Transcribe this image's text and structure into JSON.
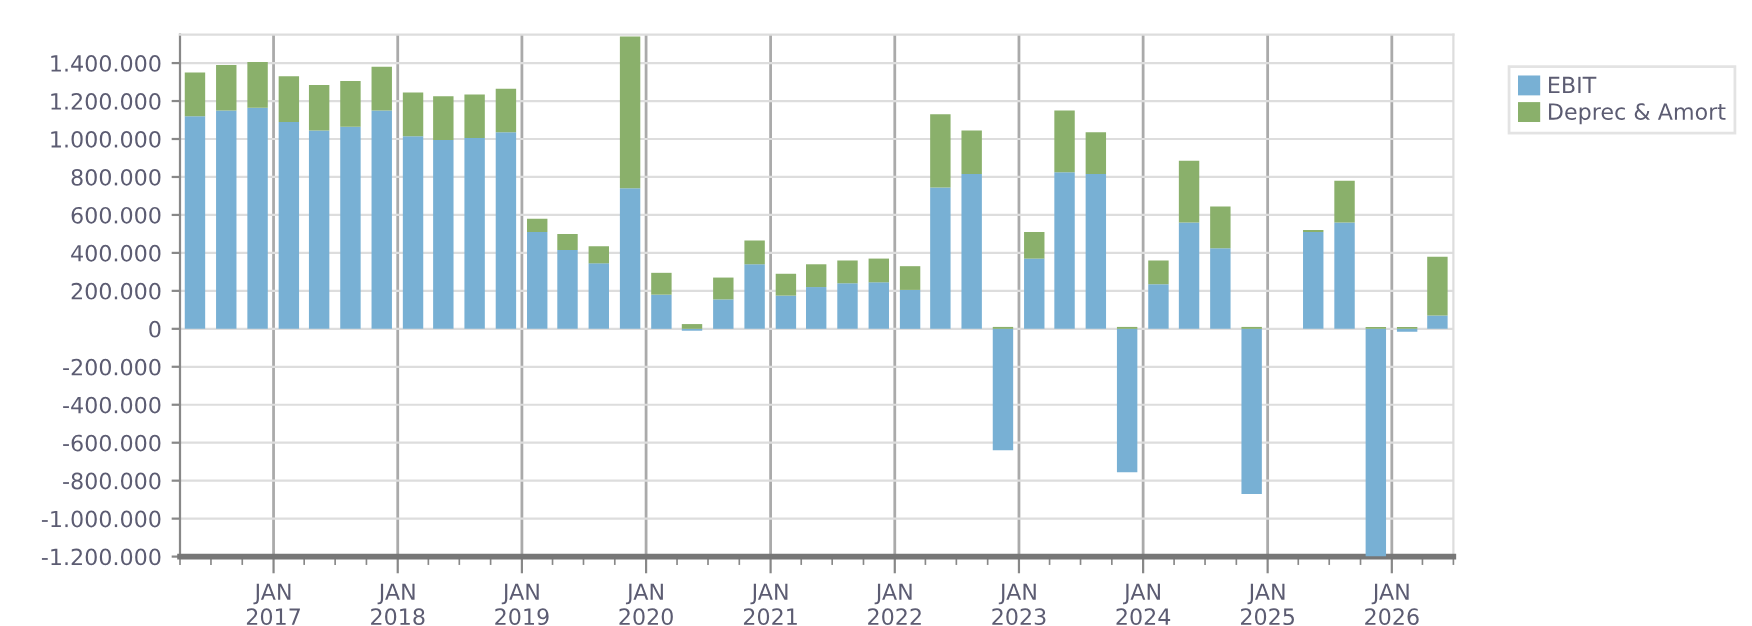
{
  "chart_data": {
    "type": "bar",
    "stacked": true,
    "x": [
      "2016-05-15",
      "2016-08-15",
      "2016-11-15",
      "2017-02-15",
      "2017-05-15",
      "2017-08-15",
      "2017-11-15",
      "2018-02-15",
      "2018-05-15",
      "2018-08-15",
      "2018-11-15",
      "2019-02-15",
      "2019-05-15",
      "2019-08-15",
      "2019-11-15",
      "2020-02-15",
      "2020-05-15",
      "2020-08-15",
      "2020-11-15",
      "2021-02-15",
      "2021-05-15",
      "2021-08-15",
      "2021-11-15",
      "2022-02-15",
      "2022-05-15",
      "2022-08-15",
      "2022-11-15",
      "2023-02-15",
      "2023-05-15",
      "2023-08-15",
      "2023-11-15",
      "2024-02-15",
      "2024-05-15",
      "2024-08-15",
      "2024-11-15",
      "2025-02-15",
      "2025-05-15",
      "2025-08-15",
      "2025-11-15",
      "2026-02-15",
      "2026-05-15"
    ],
    "series": [
      {
        "name": "EBIT",
        "color": "#78b0d4",
        "values": [
          1120000,
          1150000,
          1165000,
          1090000,
          1045000,
          1065000,
          1150000,
          1015000,
          995000,
          1005000,
          1035000,
          510000,
          415000,
          345000,
          740000,
          180000,
          -10000,
          155000,
          340000,
          175000,
          220000,
          240000,
          245000,
          205000,
          745000,
          815000,
          -640000,
          370000,
          825000,
          815000,
          -755000,
          235000,
          560000,
          425000,
          -870000,
          null,
          510000,
          560000,
          -1200000,
          -15000,
          70000
        ]
      },
      {
        "name": "Deprec & Amort",
        "color": "#8ab06b",
        "values": [
          230000,
          240000,
          240000,
          240000,
          240000,
          240000,
          230000,
          230000,
          230000,
          230000,
          230000,
          70000,
          85000,
          90000,
          800000,
          115000,
          25000,
          115000,
          125000,
          115000,
          120000,
          120000,
          125000,
          125000,
          385000,
          230000,
          10000,
          140000,
          325000,
          220000,
          10000,
          125000,
          325000,
          220000,
          10000,
          null,
          10000,
          220000,
          10000,
          10000,
          310000
        ]
      }
    ],
    "xlim": [
      "2016-04-01",
      "2026-07-01"
    ],
    "xticks": [
      {
        "value": "2016-04-01",
        "label": null
      },
      {
        "value": "2016-07-01",
        "label": null
      },
      {
        "value": "2016-10-01",
        "label": null
      },
      {
        "value": "2017-01-01",
        "label": "JAN\n2017"
      },
      {
        "value": "2017-04-01",
        "label": null
      },
      {
        "value": "2017-07-01",
        "label": null
      },
      {
        "value": "2017-10-01",
        "label": null
      },
      {
        "value": "2018-01-01",
        "label": "JAN\n2018"
      },
      {
        "value": "2018-04-01",
        "label": null
      },
      {
        "value": "2018-07-01",
        "label": null
      },
      {
        "value": "2018-10-01",
        "label": null
      },
      {
        "value": "2019-01-01",
        "label": "JAN\n2019"
      },
      {
        "value": "2019-04-01",
        "label": null
      },
      {
        "value": "2019-07-01",
        "label": null
      },
      {
        "value": "2019-10-01",
        "label": null
      },
      {
        "value": "2020-01-01",
        "label": "JAN\n2020"
      },
      {
        "value": "2020-04-01",
        "label": null
      },
      {
        "value": "2020-07-01",
        "label": null
      },
      {
        "value": "2020-10-01",
        "label": null
      },
      {
        "value": "2021-01-01",
        "label": "JAN\n2021"
      },
      {
        "value": "2021-04-01",
        "label": null
      },
      {
        "value": "2021-07-01",
        "label": null
      },
      {
        "value": "2021-10-01",
        "label": null
      },
      {
        "value": "2022-01-01",
        "label": "JAN\n2022"
      },
      {
        "value": "2022-04-01",
        "label": null
      },
      {
        "value": "2022-07-01",
        "label": null
      },
      {
        "value": "2022-10-01",
        "label": null
      },
      {
        "value": "2023-01-01",
        "label": "JAN\n2023"
      },
      {
        "value": "2023-04-01",
        "label": null
      },
      {
        "value": "2023-07-01",
        "label": null
      },
      {
        "value": "2023-10-01",
        "label": null
      },
      {
        "value": "2024-01-01",
        "label": "JAN\n2024"
      },
      {
        "value": "2024-04-01",
        "label": null
      },
      {
        "value": "2024-07-01",
        "label": null
      },
      {
        "value": "2024-10-01",
        "label": null
      },
      {
        "value": "2025-01-01",
        "label": "JAN\n2025"
      },
      {
        "value": "2025-04-01",
        "label": null
      },
      {
        "value": "2025-07-01",
        "label": null
      },
      {
        "value": "2025-10-01",
        "label": null
      },
      {
        "value": "2026-01-01",
        "label": "JAN\n2026"
      },
      {
        "value": "2026-04-01",
        "label": null
      },
      {
        "value": "2026-07-01",
        "label": null
      }
    ],
    "ylim": [
      -1200000,
      1550000
    ],
    "yticks": [
      {
        "value": -1200000,
        "label": "-1.200.000"
      },
      {
        "value": -1000000,
        "label": "-1.000.000"
      },
      {
        "value": -800000,
        "label": "-800.000"
      },
      {
        "value": -600000,
        "label": "-600.000"
      },
      {
        "value": -400000,
        "label": "-400.000"
      },
      {
        "value": -200000,
        "label": "-200.000"
      },
      {
        "value": 0,
        "label": "0"
      },
      {
        "value": 200000,
        "label": "200.000"
      },
      {
        "value": 400000,
        "label": "400.000"
      },
      {
        "value": 600000,
        "label": "600.000"
      },
      {
        "value": 800000,
        "label": "800.000"
      },
      {
        "value": 1000000,
        "label": "1.000.000"
      },
      {
        "value": 1200000,
        "label": "1.200.000"
      },
      {
        "value": 1400000,
        "label": "1.400.000"
      }
    ],
    "grid": true,
    "legend": "top right"
  }
}
